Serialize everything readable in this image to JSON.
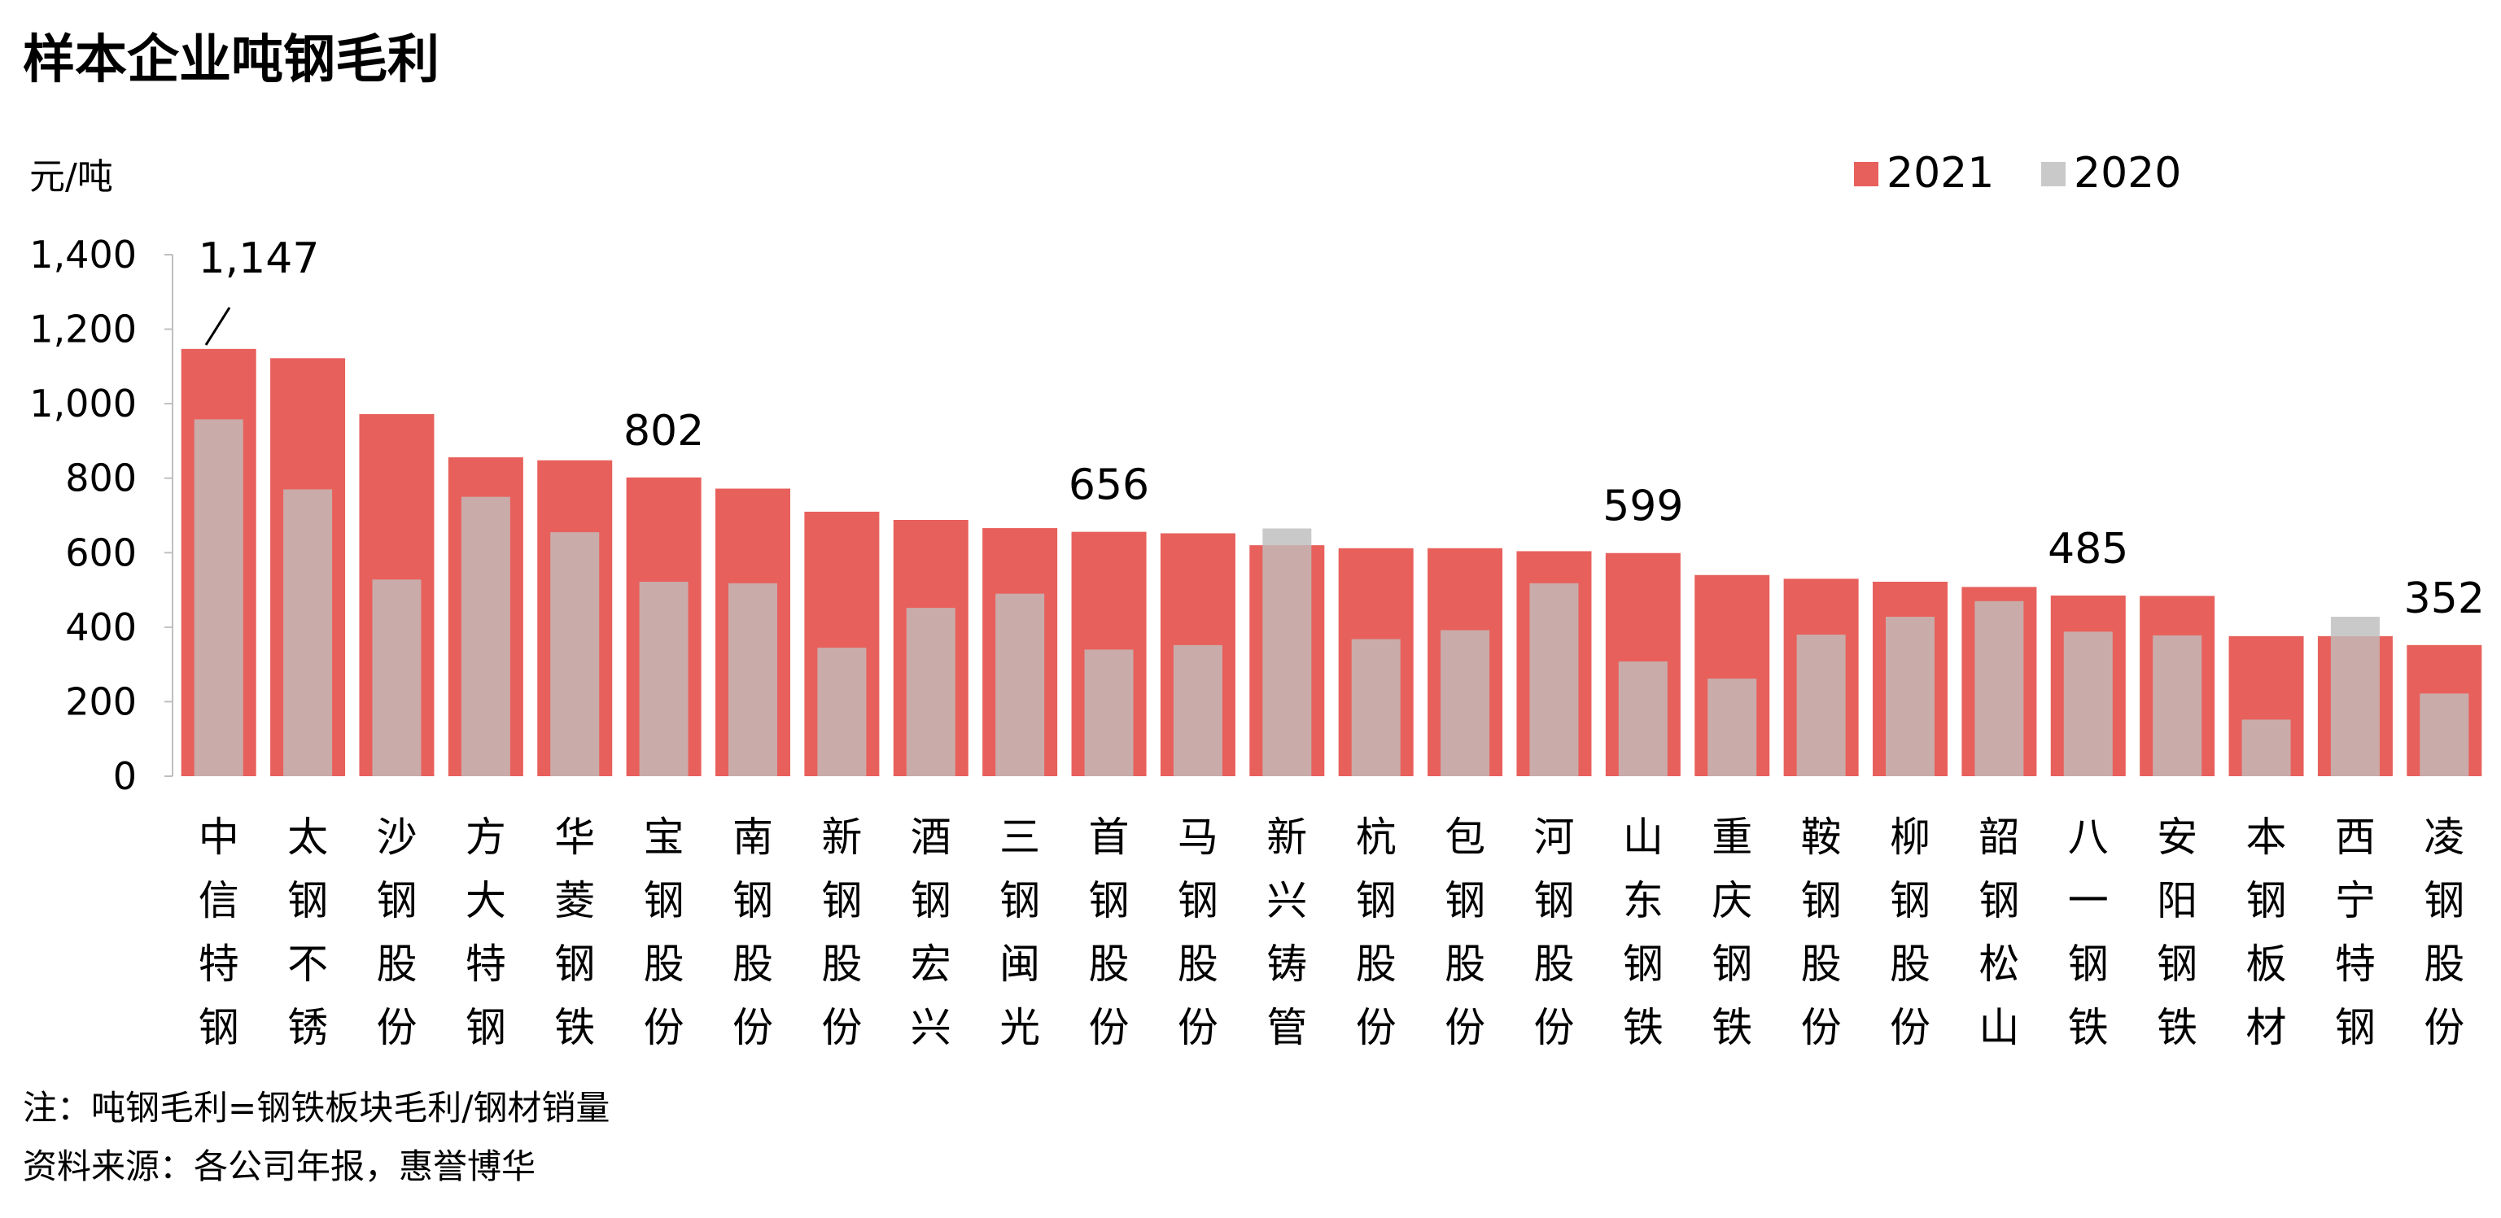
{
  "title": "样本企业吨钢毛利",
  "notes": {
    "formula": "注：吨钢毛利=钢铁板块毛利/钢材销量",
    "source": "资料来源：各公司年报，惠誉博华"
  },
  "colors": {
    "s2021": "#E8605B",
    "s2020": "#C9C9C9",
    "s2020_overlay": "#C9ABAA"
  },
  "chart_data": {
    "type": "bar",
    "ylabel": "元/吨",
    "ylim": [
      0,
      1400
    ],
    "yticks": [
      0,
      200,
      400,
      600,
      800,
      1000,
      1200,
      1400
    ],
    "ytick_labels": [
      "0",
      "200",
      "400",
      "600",
      "800",
      "1,000",
      "1,200",
      "1,400"
    ],
    "grid": false,
    "legend_position": "top-right",
    "categories": [
      "中信特钢",
      "太钢不锈",
      "沙钢股份",
      "方大特钢",
      "华菱钢铁",
      "宝钢股份",
      "南钢股份",
      "新钢股份",
      "酒钢宏兴",
      "三钢闽光",
      "首钢股份",
      "马钢股份",
      "新兴铸管",
      "杭钢股份",
      "包钢股份",
      "河钢股份",
      "山东钢铁",
      "重庆钢铁",
      "鞍钢股份",
      "柳钢股份",
      "韶钢松山",
      "八一钢铁",
      "安阳钢铁",
      "本钢板材",
      "西宁特钢",
      "凌钢股份"
    ],
    "series": [
      {
        "name": "2021",
        "values": [
          1147,
          1122,
          972,
          856,
          848,
          802,
          772,
          710,
          688,
          666,
          656,
          652,
          620,
          612,
          612,
          604,
          599,
          540,
          530,
          522,
          508,
          485,
          484,
          376,
          376,
          352
        ]
      },
      {
        "name": "2020",
        "values": [
          958,
          770,
          528,
          750,
          655,
          522,
          518,
          345,
          452,
          490,
          340,
          352,
          665,
          368,
          392,
          518,
          308,
          262,
          380,
          428,
          470,
          388,
          378,
          152,
          428,
          222
        ]
      }
    ],
    "annotations": [
      {
        "category": "中信特钢",
        "text": "1,147",
        "leader": true
      },
      {
        "category": "宝钢股份",
        "text": "802"
      },
      {
        "category": "首钢股份",
        "text": "656"
      },
      {
        "category": "山东钢铁",
        "text": "599"
      },
      {
        "category": "八一钢铁",
        "text": "485"
      },
      {
        "category": "凌钢股份",
        "text": "352"
      }
    ]
  }
}
